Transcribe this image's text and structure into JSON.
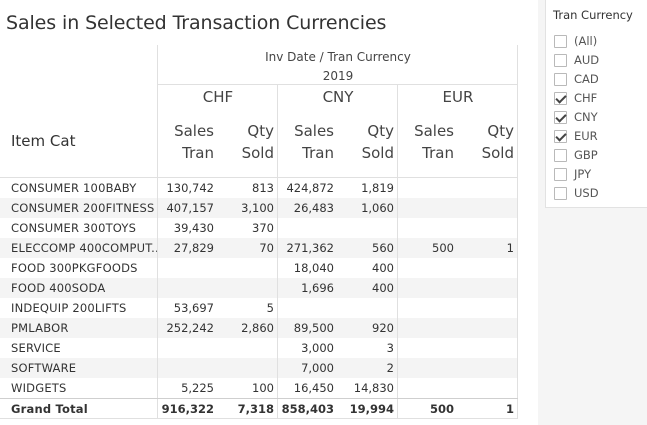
{
  "title": "Sales in Selected Transaction Currencies",
  "header": {
    "group_label": "Inv Date / Tran Currency",
    "year": "2019",
    "row_header": "Item Cat",
    "currencies": [
      "CHF",
      "CNY",
      "EUR"
    ],
    "measure_sales_line1": "Sales",
    "measure_sales_line2": "Tran",
    "measure_qty_line1": "Qty",
    "measure_qty_line2": "Sold"
  },
  "rows": [
    {
      "label": "CONSUMER  100BABY",
      "v": [
        "130,742",
        "813",
        "424,872",
        "1,819",
        "",
        ""
      ]
    },
    {
      "label": "CONSUMER  200FITNESS",
      "v": [
        "407,157",
        "3,100",
        "26,483",
        "1,060",
        "",
        ""
      ]
    },
    {
      "label": "CONSUMER  300TOYS",
      "v": [
        "39,430",
        "370",
        "",
        "",
        "",
        ""
      ]
    },
    {
      "label": "ELECCOMP  400COMPUT..",
      "v": [
        "27,829",
        "70",
        "271,362",
        "560",
        "500",
        "1"
      ]
    },
    {
      "label": "FOOD    300PKGFOODS",
      "v": [
        "",
        "",
        "18,040",
        "400",
        "",
        ""
      ]
    },
    {
      "label": "FOOD    400SODA",
      "v": [
        "",
        "",
        "1,696",
        "400",
        "",
        ""
      ]
    },
    {
      "label": "INDEQUIP  200LIFTS",
      "v": [
        "53,697",
        "5",
        "",
        "",
        "",
        ""
      ]
    },
    {
      "label": "PMLABOR",
      "v": [
        "252,242",
        "2,860",
        "89,500",
        "920",
        "",
        ""
      ]
    },
    {
      "label": "SERVICE",
      "v": [
        "",
        "",
        "3,000",
        "3",
        "",
        ""
      ]
    },
    {
      "label": "SOFTWARE",
      "v": [
        "",
        "",
        "7,000",
        "2",
        "",
        ""
      ]
    },
    {
      "label": "WIDGETS",
      "v": [
        "5,225",
        "100",
        "16,450",
        "14,830",
        "",
        ""
      ]
    }
  ],
  "total": {
    "label": "Grand Total",
    "v": [
      "916,322",
      "7,318",
      "858,403",
      "19,994",
      "500",
      "1"
    ]
  },
  "filter": {
    "title": "Tran Currency",
    "options": [
      {
        "label": "(All)",
        "checked": false
      },
      {
        "label": "AUD",
        "checked": false
      },
      {
        "label": "CAD",
        "checked": false
      },
      {
        "label": "CHF",
        "checked": true
      },
      {
        "label": "CNY",
        "checked": true
      },
      {
        "label": "EUR",
        "checked": true
      },
      {
        "label": "GBP",
        "checked": false
      },
      {
        "label": "JPY",
        "checked": false
      },
      {
        "label": "USD",
        "checked": false
      }
    ]
  }
}
